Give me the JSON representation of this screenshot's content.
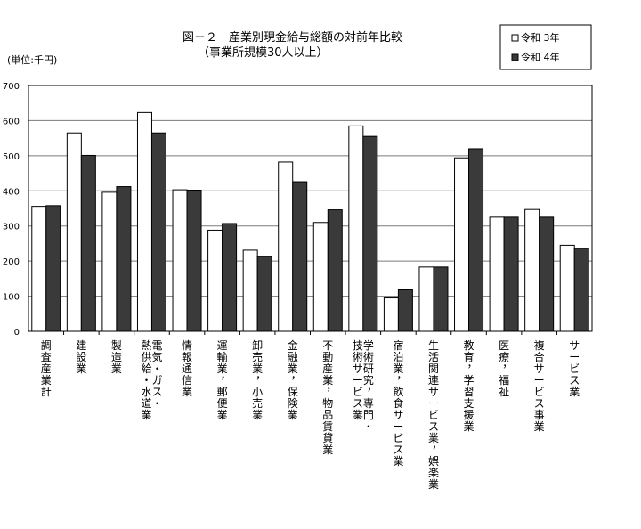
{
  "chart_data": {
    "type": "bar",
    "title": "図－２　産業別現金給与総額の対前年比較",
    "subtitle": "（事業所規模30人以上）",
    "unit_label": "(単位:千円)",
    "ylim": [
      0,
      700
    ],
    "yticks": [
      0,
      100,
      200,
      300,
      400,
      500,
      600,
      700
    ],
    "grid": true,
    "legend_position": "top-right",
    "categories": [
      "調査産業計",
      "建設業",
      "製造業",
      "電気・ガス・熱供給・水道業",
      "情報通信業",
      "運輸業，郵便業",
      "卸売業，小売業",
      "金融業，保険業",
      "不動産業，物品賃貸業",
      "学術研究，専門・技術サービス業",
      "宿泊業，飲食サービス業",
      "生活関連サービス業，娯楽業",
      "教育，学習支援業",
      "医療，福祉",
      "複合サービス事業",
      "サービス業"
    ],
    "category_lines": [
      [
        "調査産業計"
      ],
      [
        "建設業"
      ],
      [
        "製造業"
      ],
      [
        "電気・ガス・",
        "熱供給・水道業"
      ],
      [
        "情報通信業"
      ],
      [
        "運輸業，郵便業"
      ],
      [
        "卸売業，小売業"
      ],
      [
        "金融業，保険業"
      ],
      [
        "不動産業，物品賃貸業"
      ],
      [
        "学術研究，専門・",
        "技術サービス業"
      ],
      [
        "宿泊業，飲食サービス業"
      ],
      [
        "生活関連サービス業，娯楽業"
      ],
      [
        "教育，学習支援業"
      ],
      [
        "医療，福祉"
      ],
      [
        "複合サービス事業"
      ],
      [
        "サービス業"
      ]
    ],
    "series": [
      {
        "name": "令和 3年",
        "color": "#ffffff",
        "values": [
          356,
          565,
          396,
          623,
          403,
          288,
          231,
          482,
          310,
          585,
          95,
          183,
          494,
          325,
          347,
          245
        ]
      },
      {
        "name": "令和 4年",
        "color": "#3a3a3a",
        "values": [
          358,
          501,
          412,
          565,
          402,
          307,
          213,
          426,
          346,
          555,
          118,
          183,
          520,
          325,
          325,
          236
        ]
      }
    ]
  }
}
